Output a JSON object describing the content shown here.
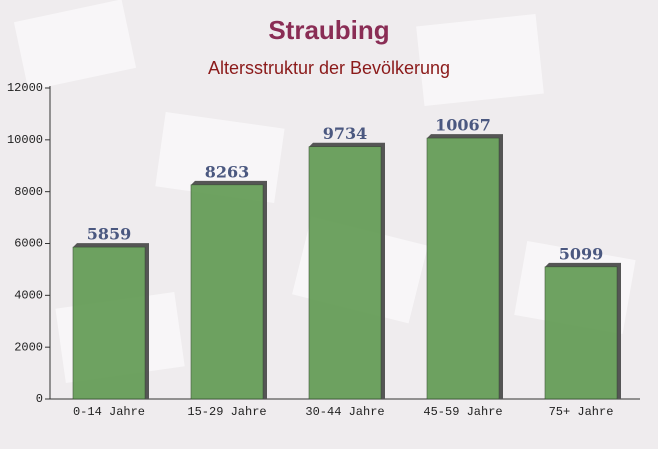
{
  "chart_data": {
    "type": "bar",
    "title": "Straubing",
    "subtitle": "Altersstruktur der Bevölkerung",
    "categories": [
      "0-14 Jahre",
      "15-29 Jahre",
      "30-44 Jahre",
      "45-59 Jahre",
      "75+ Jahre"
    ],
    "values": [
      5859,
      8263,
      9734,
      10067,
      5099
    ],
    "color": "#5f9a50",
    "ylim": [
      0,
      12000
    ],
    "yticks": [
      0,
      2000,
      4000,
      6000,
      8000,
      10000,
      12000
    ]
  }
}
